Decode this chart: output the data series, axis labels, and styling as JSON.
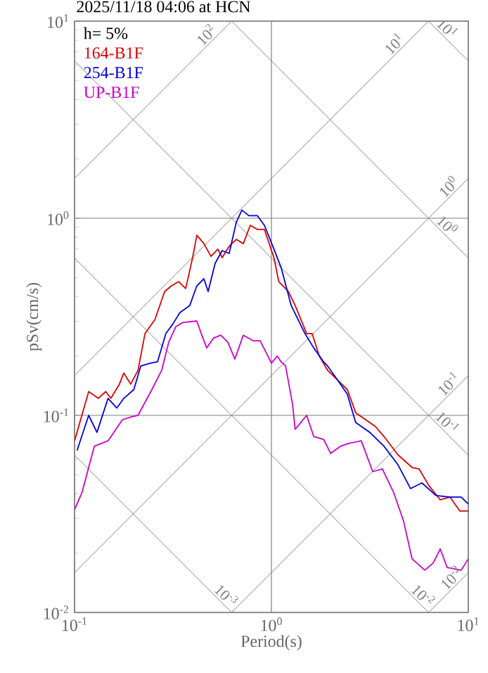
{
  "chart_data": {
    "type": "line",
    "title": "2025/11/18 04:06 at HCN",
    "xlabel": "Period(s)",
    "ylabel": "pSv(cm/s)",
    "log": "xy",
    "grid": true,
    "legend": "top left",
    "xlim": [
      0.1,
      10
    ],
    "ylim": [
      0.01,
      10
    ],
    "xticks": [
      {
        "value": 0.1,
        "label": "10$^{-1}$"
      },
      {
        "value": 1,
        "label": "10$^{0}$"
      },
      {
        "value": 10,
        "label": "10$^{1}$"
      }
    ],
    "yticks": [
      {
        "value": 0.01,
        "label": "10$^{-2}$"
      },
      {
        "value": 0.1,
        "label": "10$^{-1}$"
      },
      {
        "value": 1,
        "label": "10$^{0}$"
      },
      {
        "value": 10,
        "label": "10$^{1}$"
      }
    ],
    "annotations": [
      "h= 5%",
      {
        "text": "10$^{2}$",
        "x": 0.5,
        "y": 7.96
      },
      {
        "text": "10$^{1}$",
        "x": 4.5,
        "y": 7.16
      },
      {
        "text": "10$^{0}$",
        "x": 8.5,
        "y": 1.35
      },
      {
        "text": "10$^{-1}$",
        "x": 8.5,
        "y": 0.135
      },
      {
        "text": "10$^{-2}$",
        "x": 8.8,
        "y": 0.014
      },
      {
        "text": "10$^{1}$",
        "x": 7.3,
        "y": 8.61
      },
      {
        "text": "10$^{0}$",
        "x": 7.3,
        "y": 0.861
      },
      {
        "text": "10$^{-1}$",
        "x": 7.3,
        "y": 0.0861
      },
      {
        "text": "10$^{-2}$",
        "x": 5.5,
        "y": 0.0114
      },
      {
        "text": "10$^{-3}$",
        "x": 0.55,
        "y": 0.0114
      }
    ],
    "series": [
      {
        "color": "#808080",
        "x": [
          0.1,
          0.6283
        ],
        "values": [
          1.592,
          10
        ]
      },
      {
        "color": "#808080",
        "x": [
          0.1,
          6.283
        ],
        "values": [
          0.1592,
          10
        ]
      },
      {
        "color": "#808080",
        "x": [
          0.1,
          10
        ],
        "values": [
          0.01592,
          1.592
        ]
      },
      {
        "color": "#808080",
        "x": [
          0.6283,
          10
        ],
        "values": [
          0.01,
          0.1592
        ]
      },
      {
        "color": "#808080",
        "x": [
          6.283,
          10
        ],
        "values": [
          0.01,
          0.01592
        ]
      },
      {
        "color": "#808080",
        "x": [
          6.283,
          10
        ],
        "values": [
          10,
          6.283
        ]
      },
      {
        "color": "#808080",
        "x": [
          0.6283,
          10
        ],
        "values": [
          10,
          0.6283
        ]
      },
      {
        "color": "#808080",
        "x": [
          0.1,
          10
        ],
        "values": [
          6.283,
          0.06283
        ]
      },
      {
        "color": "#808080",
        "x": [
          0.1,
          6.283
        ],
        "values": [
          0.6283,
          0.01
        ]
      },
      {
        "color": "#808080",
        "x": [
          0.1,
          0.6283
        ],
        "values": [
          0.06283,
          0.01
        ]
      },
      {
        "name": "164-B1F",
        "color": "#dd0000",
        "x": [
          0.1,
          0.118,
          0.132,
          0.144,
          0.153,
          0.169,
          0.178,
          0.193,
          0.21,
          0.228,
          0.256,
          0.287,
          0.311,
          0.338,
          0.367,
          0.398,
          0.418,
          0.454,
          0.493,
          0.535,
          0.562,
          0.61,
          0.663,
          0.72,
          0.781,
          0.849,
          0.921,
          1.03,
          1.09,
          1.22,
          1.32,
          1.51,
          1.61,
          1.75,
          1.93,
          2.17,
          2.43,
          2.68,
          3.38,
          3.73,
          4.39,
          5.18,
          5.62,
          6.31,
          7.2,
          8.07,
          9.06,
          10
        ],
        "values": [
          0.0743,
          0.132,
          0.122,
          0.132,
          0.122,
          0.144,
          0.164,
          0.144,
          0.169,
          0.26,
          0.306,
          0.425,
          0.454,
          0.477,
          0.44,
          0.631,
          0.82,
          0.743,
          0.641,
          0.697,
          0.631,
          0.72,
          0.781,
          0.743,
          0.921,
          0.877,
          0.877,
          0.631,
          0.477,
          0.425,
          0.361,
          0.26,
          0.26,
          0.2,
          0.169,
          0.151,
          0.135,
          0.103,
          0.0877,
          0.0781,
          0.0631,
          0.0544,
          0.0535,
          0.044,
          0.0373,
          0.0385,
          0.0327,
          0.0327
        ]
      },
      {
        "name": "254-B1F",
        "color": "#0000dd",
        "x": [
          0.103,
          0.118,
          0.13,
          0.148,
          0.164,
          0.178,
          0.2,
          0.217,
          0.243,
          0.264,
          0.291,
          0.316,
          0.343,
          0.385,
          0.418,
          0.454,
          0.477,
          0.518,
          0.562,
          0.61,
          0.663,
          0.708,
          0.769,
          0.849,
          0.921,
          1.03,
          1.12,
          1.26,
          1.48,
          1.64,
          1.84,
          1.93,
          2.17,
          2.43,
          2.68,
          3.16,
          3.73,
          4.39,
          5.09,
          5.81,
          6.85,
          8.07,
          9.2,
          10
        ],
        "values": [
          0.0663,
          0.1,
          0.082,
          0.122,
          0.109,
          0.122,
          0.135,
          0.178,
          0.184,
          0.187,
          0.26,
          0.291,
          0.332,
          0.361,
          0.454,
          0.493,
          0.425,
          0.591,
          0.685,
          0.663,
          0.953,
          1.1,
          1.03,
          1.03,
          0.921,
          0.697,
          0.562,
          0.361,
          0.26,
          0.22,
          0.187,
          0.178,
          0.151,
          0.128,
          0.092,
          0.082,
          0.0697,
          0.0562,
          0.0425,
          0.0454,
          0.0392,
          0.0385,
          0.0385,
          0.0355
        ]
      },
      {
        "name": "UP-B1F",
        "color": "#cc00cc",
        "x": [
          0.1,
          0.109,
          0.126,
          0.148,
          0.175,
          0.193,
          0.21,
          0.247,
          0.277,
          0.301,
          0.327,
          0.355,
          0.418,
          0.44,
          0.469,
          0.509,
          0.553,
          0.601,
          0.652,
          0.72,
          0.807,
          0.877,
          1.0,
          1.07,
          1.12,
          1.18,
          1.28,
          1.32,
          1.51,
          1.64,
          1.84,
          2.0,
          2.24,
          2.47,
          2.86,
          3.27,
          3.66,
          4.18,
          4.69,
          5.18,
          6.01,
          6.63,
          7.2,
          7.81,
          9.2,
          10
        ],
        "values": [
          0.0332,
          0.0405,
          0.0697,
          0.0743,
          0.095,
          0.098,
          0.1,
          0.135,
          0.169,
          0.235,
          0.282,
          0.296,
          0.301,
          0.26,
          0.22,
          0.247,
          0.255,
          0.235,
          0.193,
          0.255,
          0.239,
          0.239,
          0.184,
          0.2,
          0.187,
          0.178,
          0.114,
          0.0849,
          0.1,
          0.0781,
          0.0756,
          0.0641,
          0.0697,
          0.072,
          0.0743,
          0.0518,
          0.0535,
          0.0405,
          0.0291,
          0.0187,
          0.0164,
          0.0178,
          0.021,
          0.0169,
          0.0164,
          0.0187
        ]
      }
    ]
  }
}
